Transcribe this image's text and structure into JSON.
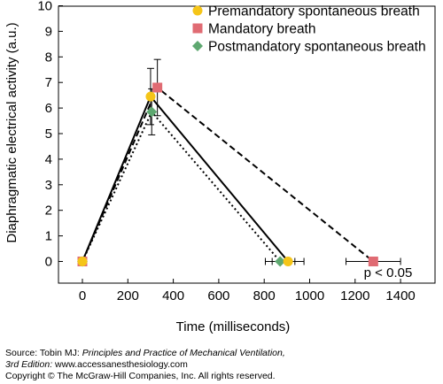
{
  "chart_data": {
    "type": "scatter",
    "xlabel": "Time (milliseconds)",
    "ylabel": "Diaphragmatic electrical activity (a.u.)",
    "xlim": [
      -100,
      1500
    ],
    "ylim": [
      0,
      10
    ],
    "xticks": [
      0,
      200,
      400,
      600,
      800,
      1000,
      1200,
      1400
    ],
    "yticks": [
      0,
      1,
      2,
      3,
      4,
      5,
      6,
      7,
      8,
      9,
      10
    ],
    "grid": false,
    "legend_position": "top-right",
    "series": [
      {
        "name": "Premandatory spontaneous breath",
        "marker": "circle",
        "color": "#f5c518",
        "line_style": "solid",
        "points": [
          {
            "x": 0,
            "y": 0
          },
          {
            "x": 300,
            "y": 6.45,
            "yerr": 1.1
          },
          {
            "x": 905,
            "y": 0,
            "xerr": 70
          }
        ]
      },
      {
        "name": "Mandatory breath",
        "marker": "square",
        "color": "#e06b73",
        "line_style": "dashed",
        "points": [
          {
            "x": 0,
            "y": 0
          },
          {
            "x": 330,
            "y": 6.8,
            "yerr": 1.1
          },
          {
            "x": 1280,
            "y": 0,
            "xerr": 120
          }
        ]
      },
      {
        "name": "Postmandatory spontaneous breath",
        "marker": "diamond",
        "color": "#5ea870",
        "line_style": "dotted",
        "points": [
          {
            "x": 0,
            "y": 0
          },
          {
            "x": 305,
            "y": 5.85,
            "yerr": 0.9
          },
          {
            "x": 870,
            "y": 0,
            "xerr": 65
          }
        ]
      }
    ],
    "annotations": [
      {
        "text": "p < 0.05",
        "x": 1345,
        "y": -0.6
      }
    ]
  },
  "source": {
    "line1_prefix": "Source: Tobin MJ: ",
    "line1_title": "Principles and Practice of Mechanical Ventilation,",
    "line2_edition": "3rd Edition: ",
    "line2_url": "www.accessanesthesiology.com",
    "line3": "Copyright © The McGraw-Hill Companies, Inc. All rights reserved."
  }
}
